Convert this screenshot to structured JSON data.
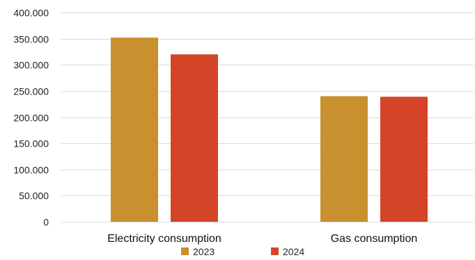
{
  "chart_data": {
    "type": "bar",
    "title": "",
    "xlabel": "",
    "ylabel": "",
    "categories": [
      "Electricity consumption",
      "Gas consumption"
    ],
    "series": [
      {
        "name": "2023",
        "values": [
          352000,
          240000
        ],
        "color": "#C8902E"
      },
      {
        "name": "2024",
        "values": [
          320000,
          239000
        ],
        "color": "#D44527"
      }
    ],
    "ylim": [
      0,
      400000
    ],
    "yticks": [
      0,
      50000,
      100000,
      150000,
      200000,
      250000,
      300000,
      350000,
      400000
    ],
    "ytick_labels": [
      "0",
      "50.000",
      "100.000",
      "150.000",
      "200.000",
      "250.000",
      "300.000",
      "350.000",
      "400.000"
    ],
    "grid": true,
    "legend_position": "bottom-center",
    "gridline_color": "#DADADA"
  }
}
